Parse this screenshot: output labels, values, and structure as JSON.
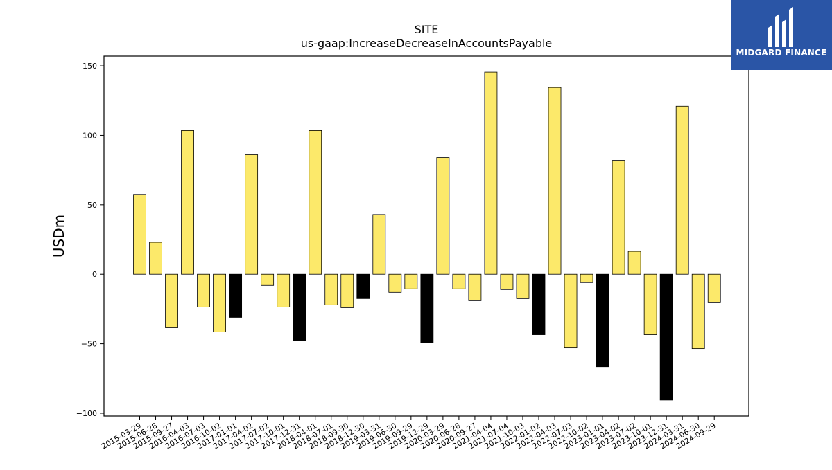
{
  "brand": {
    "name": "MIDGARD FINANCE",
    "bg_color": "#2a55a6"
  },
  "chart_data": {
    "type": "bar",
    "title": "SITE",
    "subtitle": "us-gaap:IncreaseDecreaseInAccountsPayable",
    "xlabel": "",
    "ylabel": "USDm",
    "ylim": [
      -102,
      157
    ],
    "yticks": [
      -100,
      -50,
      0,
      50,
      100,
      150
    ],
    "grid": false,
    "categories": [
      "2015-03-29",
      "2015-06-28",
      "2015-09-27",
      "2016-04-03",
      "2016-07-03",
      "2016-10-02",
      "2017-01-01",
      "2017-04-02",
      "2017-07-02",
      "2017-10-01",
      "2017-12-31",
      "2018-04-01",
      "2018-07-01",
      "2018-09-30",
      "2018-12-30",
      "2019-03-31",
      "2019-06-30",
      "2019-09-29",
      "2019-12-29",
      "2020-03-29",
      "2020-06-28",
      "2020-09-27",
      "2021-04-04",
      "2021-07-04",
      "2021-10-03",
      "2022-01-02",
      "2022-04-03",
      "2022-07-03",
      "2022-10-02",
      "2023-01-01",
      "2023-04-02",
      "2023-07-02",
      "2023-10-01",
      "2023-12-31",
      "2024-03-31",
      "2024-06-30",
      "2024-09-29"
    ],
    "values": [
      57.5,
      23,
      -38.5,
      103.5,
      -23.5,
      -41.5,
      -31,
      86,
      -8,
      -23.5,
      -47.5,
      103.5,
      -22,
      -24,
      -17.5,
      43,
      -13,
      -10.5,
      -49,
      84,
      -10.5,
      -19,
      145.5,
      -11,
      -17.5,
      -43.5,
      134.5,
      -53,
      -6,
      -66.5,
      82,
      16.5,
      -43.5,
      -90.5,
      121,
      -53.5,
      -20.5
    ],
    "bar_colors": [
      "#fce96a",
      "#fce96a",
      "#fce96a",
      "#fce96a",
      "#fce96a",
      "#fce96a",
      "#000000",
      "#fce96a",
      "#fce96a",
      "#fce96a",
      "#000000",
      "#fce96a",
      "#fce96a",
      "#fce96a",
      "#000000",
      "#fce96a",
      "#fce96a",
      "#fce96a",
      "#000000",
      "#fce96a",
      "#fce96a",
      "#fce96a",
      "#fce96a",
      "#fce96a",
      "#fce96a",
      "#000000",
      "#fce96a",
      "#fce96a",
      "#fce96a",
      "#000000",
      "#fce96a",
      "#fce96a",
      "#fce96a",
      "#000000",
      "#fce96a",
      "#fce96a",
      "#fce96a"
    ]
  }
}
